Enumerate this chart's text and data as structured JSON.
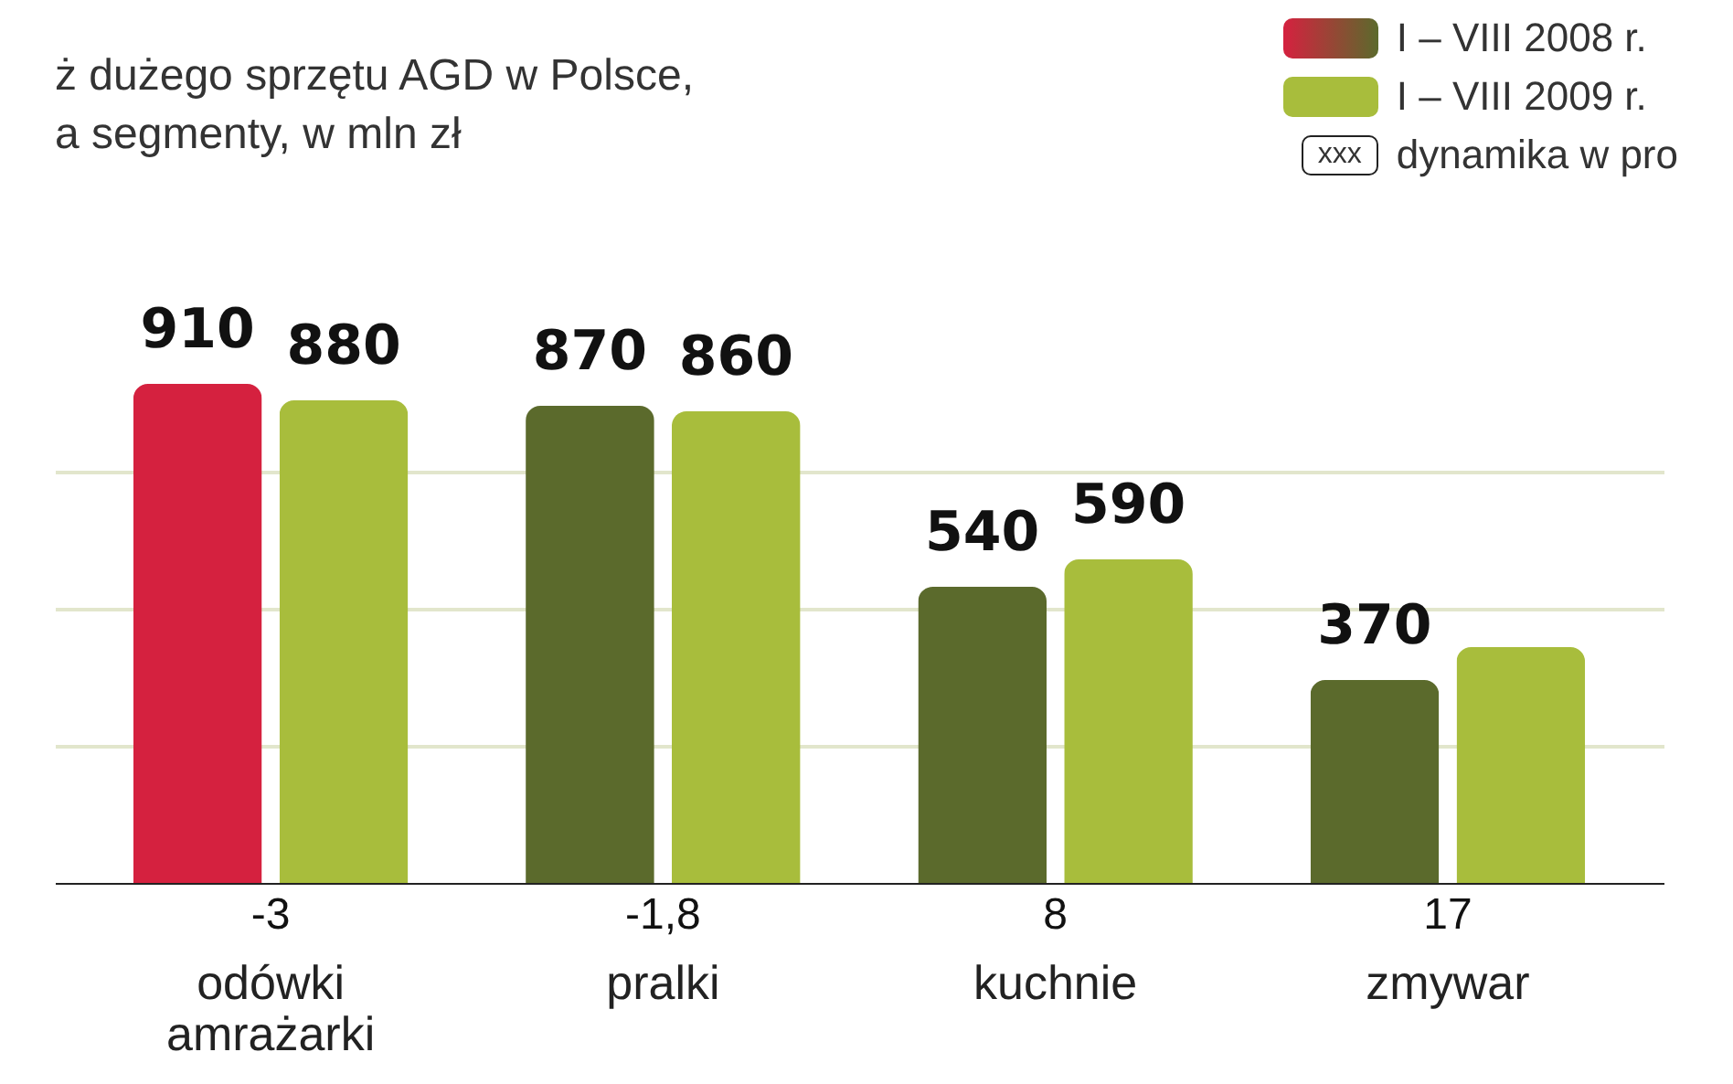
{
  "chart_data": {
    "type": "bar",
    "title": "ż dużego sprzętu AGD w Polsce,\na segmenty, w mln zł",
    "categories": [
      "odówki amrażarki",
      "pralki",
      "kuchnie",
      "zmywar"
    ],
    "series": [
      {
        "name": "I – VIII 2008 r.",
        "color": "#5b6a2c",
        "colors": [
          "#d5213f",
          "#5b6a2c",
          "#5b6a2c",
          "#5b6a2c"
        ],
        "values": [
          910,
          870,
          540,
          370
        ],
        "value_labels": [
          "910",
          "870",
          "540",
          "370"
        ]
      },
      {
        "name": "I – VIII 2009 r.",
        "color": "#a8bd3c",
        "values": [
          880,
          860,
          590,
          430
        ],
        "value_labels": [
          "880",
          "860",
          "590",
          null
        ]
      }
    ],
    "yticks": [
      {
        "value": 250,
        "label": null
      },
      {
        "value": 500,
        "label": null
      },
      {
        "value": 750,
        "label": null
      }
    ],
    "grid": "y",
    "tick_labels": "x",
    "legend": "top right",
    "annotations": [
      "xxx",
      "dynamika w pro",
      "-3",
      "-1,8",
      "8",
      "17"
    ]
  }
}
